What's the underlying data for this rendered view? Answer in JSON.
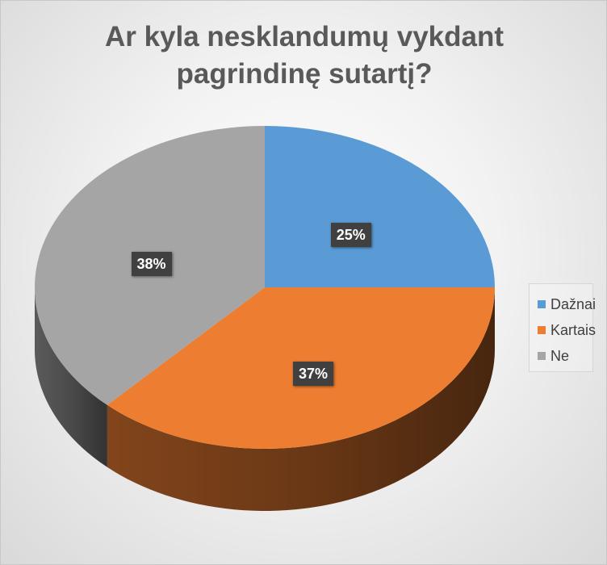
{
  "chart_data": {
    "type": "pie",
    "title": "Ar kyla nesklandumų vykdant\npagrindinę sutartį?",
    "categories": [
      "Dažnai",
      "Kartais",
      "Ne"
    ],
    "values": [
      25,
      37,
      38
    ],
    "data_labels": [
      "25%",
      "37%",
      "38%"
    ],
    "colors": [
      "#5B9BD5",
      "#ED7D31",
      "#A5A5A5"
    ],
    "legend_position": "right",
    "style": "3d"
  }
}
